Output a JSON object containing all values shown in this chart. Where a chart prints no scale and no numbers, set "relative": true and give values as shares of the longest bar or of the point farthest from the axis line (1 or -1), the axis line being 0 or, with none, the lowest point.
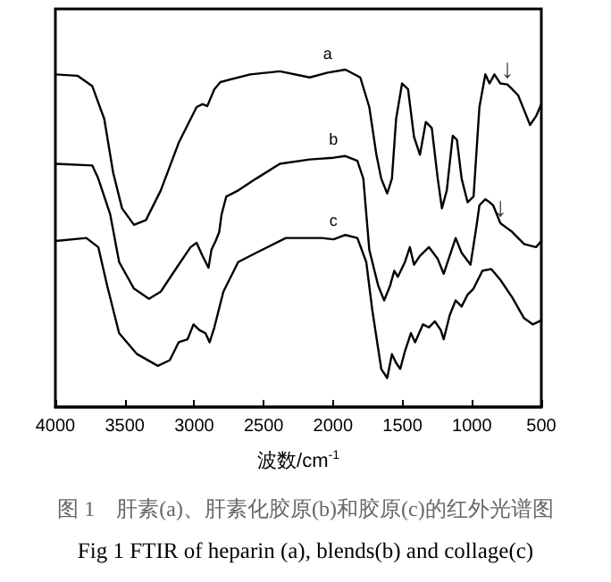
{
  "chart_data": {
    "type": "line",
    "relative": true,
    "title": "图 1　肝素(a)、肝素化胶原(b)和胶原(c)的红外光谱图",
    "subtitle": "Fig 1 FTIR of heparin (a), blends(b) and collage(c)",
    "xlabel": "波数/cm$^{-1}$",
    "xlim": [
      4000,
      500
    ],
    "xticks": [
      4000,
      3500,
      3000,
      2500,
      2000,
      1500,
      1000,
      500
    ],
    "series": [
      {
        "name": "a",
        "color": "#000000",
        "x": [
          4000,
          3841,
          3734,
          3648,
          3584,
          3520,
          3434,
          3348,
          3241,
          3112,
          2983,
          2940,
          2906,
          2855,
          2812,
          2597,
          2383,
          2168,
          2039,
          1911,
          1804,
          1739,
          1688,
          1653,
          1610,
          1576,
          1546,
          1503,
          1460,
          1417,
          1374,
          1332,
          1289,
          1246,
          1216,
          1181,
          1138,
          1108,
          1074,
          1031,
          988,
          946,
          903,
          873,
          838,
          795,
          744,
          710,
          667,
          624,
          581,
          538,
          500
        ],
        "values": [
          0.986,
          0.982,
          0.951,
          0.854,
          0.695,
          0.589,
          0.54,
          0.554,
          0.642,
          0.783,
          0.889,
          0.898,
          0.892,
          0.942,
          0.963,
          0.986,
          0.995,
          0.977,
          0.991,
          1,
          0.977,
          0.889,
          0.748,
          0.677,
          0.633,
          0.677,
          0.854,
          0.959,
          0.942,
          0.801,
          0.748,
          0.845,
          0.827,
          0.677,
          0.589,
          0.642,
          0.804,
          0.792,
          0.677,
          0.607,
          0.624,
          0.889,
          0.986,
          0.959,
          0.986,
          0.959,
          0.956,
          0.942,
          0.924,
          0.88,
          0.836,
          0.862,
          0.898
        ]
      },
      {
        "name": "b",
        "color": "#000000",
        "x": [
          4000,
          3734,
          3691,
          3605,
          3541,
          3434,
          3326,
          3241,
          3112,
          3026,
          2983,
          2940,
          2897,
          2876,
          2846,
          2820,
          2803,
          2769,
          2683,
          2554,
          2383,
          2168,
          1997,
          1911,
          1825,
          1782,
          1739,
          1675,
          1632,
          1589,
          1559,
          1533,
          1482,
          1447,
          1417,
          1374,
          1310,
          1246,
          1203,
          1160,
          1117,
          1074,
          1010,
          967,
          946,
          903,
          873,
          847,
          795,
          710,
          624,
          538,
          500
        ],
        "values": [
          0.721,
          0.716,
          0.677,
          0.571,
          0.43,
          0.351,
          0.321,
          0.342,
          0.422,
          0.474,
          0.487,
          0.448,
          0.413,
          0.466,
          0.492,
          0.519,
          0.571,
          0.624,
          0.642,
          0.677,
          0.721,
          0.734,
          0.739,
          0.744,
          0.73,
          0.677,
          0.466,
          0.36,
          0.316,
          0.36,
          0.404,
          0.386,
          0.43,
          0.474,
          0.422,
          0.448,
          0.474,
          0.439,
          0.395,
          0.448,
          0.501,
          0.457,
          0.422,
          0.536,
          0.598,
          0.616,
          0.607,
          0.598,
          0.545,
          0.519,
          0.483,
          0.474,
          0.492
        ]
      },
      {
        "name": "c",
        "color": "#000000",
        "x": [
          4000,
          3777,
          3691,
          3627,
          3541,
          3412,
          3262,
          3176,
          3112,
          3048,
          3005,
          2962,
          2919,
          2889,
          2855,
          2790,
          2683,
          2554,
          2340,
          2082,
          1997,
          1911,
          1825,
          1761,
          1718,
          1653,
          1610,
          1576,
          1546,
          1516,
          1482,
          1439,
          1409,
          1353,
          1310,
          1267,
          1224,
          1203,
          1160,
          1117,
          1074,
          1031,
          988,
          924,
          860,
          795,
          710,
          624,
          560,
          500
        ],
        "values": [
          0.492,
          0.501,
          0.474,
          0.36,
          0.219,
          0.157,
          0.122,
          0.139,
          0.192,
          0.201,
          0.245,
          0.228,
          0.219,
          0.192,
          0.236,
          0.342,
          0.43,
          0.457,
          0.501,
          0.501,
          0.497,
          0.51,
          0.501,
          0.43,
          0.289,
          0.113,
          0.086,
          0.157,
          0.131,
          0.113,
          0.166,
          0.219,
          0.192,
          0.245,
          0.236,
          0.254,
          0.228,
          0.201,
          0.272,
          0.316,
          0.298,
          0.333,
          0.351,
          0.404,
          0.409,
          0.377,
          0.325,
          0.263,
          0.245,
          0.257
        ]
      }
    ],
    "annotations": [
      {
        "text": "↓",
        "x": 744,
        "y": 0.956
      },
      {
        "text": "↓",
        "x": 795,
        "y": 0.545
      }
    ]
  }
}
